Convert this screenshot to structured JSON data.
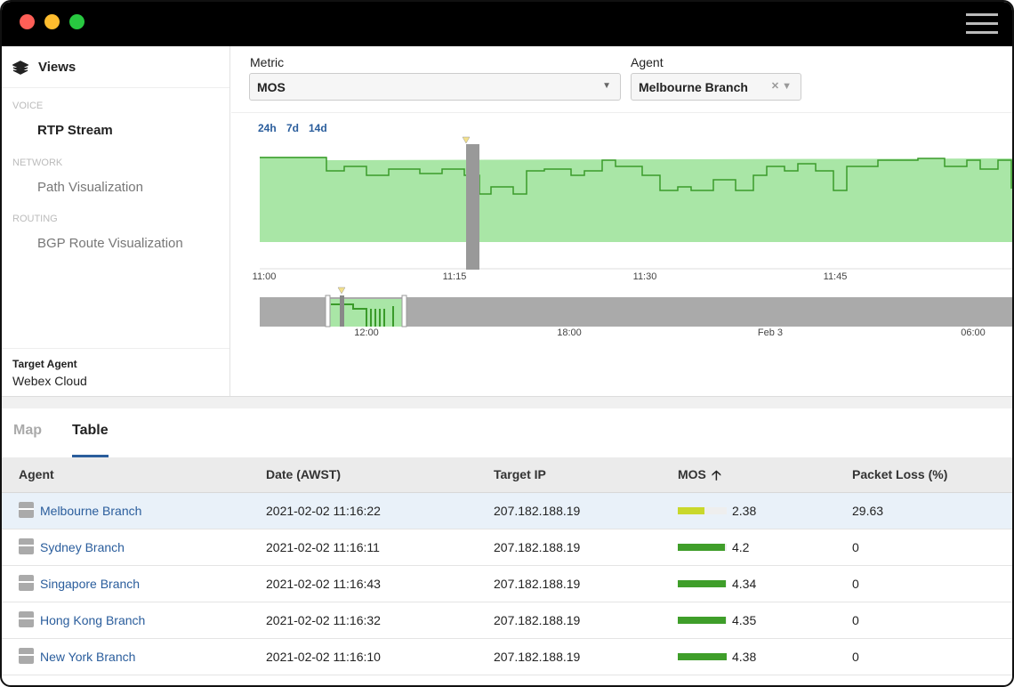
{
  "sidebar": {
    "title": "Views",
    "sections": [
      {
        "heading": "VOICE",
        "item": "RTP Stream"
      },
      {
        "heading": "NETWORK",
        "item": "Path Visualization"
      },
      {
        "heading": "ROUTING",
        "item": "BGP Route Visualization"
      }
    ],
    "target_agent": {
      "label": "Target Agent",
      "value": "Webex Cloud"
    }
  },
  "filters": {
    "metric": {
      "label": "Metric",
      "value": "MOS"
    },
    "agent": {
      "label": "Agent",
      "value": "Melbourne Branch"
    }
  },
  "timeline": {
    "ranges": [
      "24h",
      "7d",
      "14d"
    ],
    "main_ticks": [
      "11:00",
      "11:15",
      "11:30",
      "11:45"
    ],
    "overview_ticks": [
      "12:00",
      "18:00",
      "Feb 3",
      "06:00"
    ]
  },
  "tabs": [
    "Map",
    "Table"
  ],
  "table": {
    "columns": [
      "Agent",
      "Date (AWST)",
      "Target IP",
      "MOS",
      "Packet Loss (%)"
    ],
    "rows": [
      {
        "agent": "Melbourne Branch",
        "date": "2021-02-02 11:16:22",
        "target_ip": "207.182.188.19",
        "mos": 2.38,
        "mos_color": "#c9d82c",
        "packet_loss": 29.63
      },
      {
        "agent": "Sydney Branch",
        "date": "2021-02-02 11:16:11",
        "target_ip": "207.182.188.19",
        "mos": 4.2,
        "mos_color": "#3f9e2a",
        "packet_loss": 0
      },
      {
        "agent": "Singapore Branch",
        "date": "2021-02-02 11:16:43",
        "target_ip": "207.182.188.19",
        "mos": 4.34,
        "mos_color": "#3f9e2a",
        "packet_loss": 0
      },
      {
        "agent": "Hong Kong Branch",
        "date": "2021-02-02 11:16:32",
        "target_ip": "207.182.188.19",
        "mos": 4.35,
        "mos_color": "#3f9e2a",
        "packet_loss": 0
      },
      {
        "agent": "New York Branch",
        "date": "2021-02-02 11:16:10",
        "target_ip": "207.182.188.19",
        "mos": 4.38,
        "mos_color": "#3f9e2a",
        "packet_loss": 0
      }
    ]
  }
}
